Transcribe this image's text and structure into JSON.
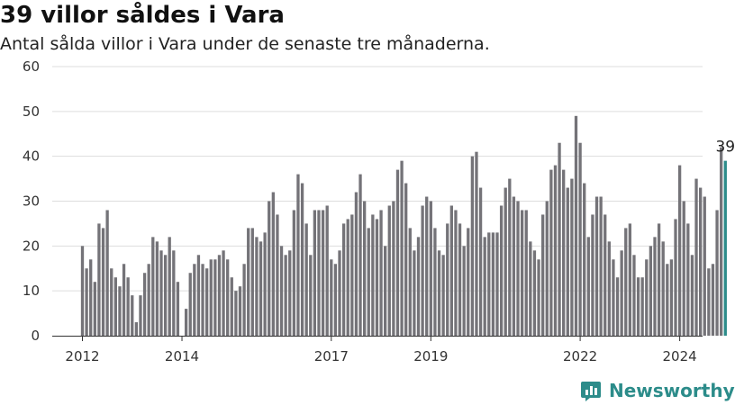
{
  "header": {
    "title": "39 villor såldes i Vara",
    "subtitle": "Antal sålda villor i Vara under de senaste tre månaderna."
  },
  "brand": {
    "name": "Newsworthy",
    "icon": "chart-logo-icon",
    "color": "#2c8c8a"
  },
  "colors": {
    "bar": "#747378",
    "highlight": "#2c8c8a",
    "grid": "#dddddd",
    "axis": "#333333"
  },
  "chart_data": {
    "type": "bar",
    "title": "39 villor såldes i Vara",
    "xlabel": "",
    "ylabel": "",
    "ylim": [
      0,
      60
    ],
    "yticks": [
      0,
      10,
      20,
      30,
      40,
      50,
      60
    ],
    "grid": true,
    "x_start": "2012-01",
    "frequency": "monthly",
    "x_tick_labels": [
      {
        "label": "2012",
        "index": 0
      },
      {
        "label": "2014",
        "index": 24
      },
      {
        "label": "2017",
        "index": 60
      },
      {
        "label": "2019",
        "index": 84
      },
      {
        "label": "2022",
        "index": 120
      },
      {
        "label": "2024",
        "index": 144
      }
    ],
    "highlight_label": "39",
    "values": [
      20,
      15,
      17,
      12,
      25,
      24,
      28,
      15,
      13,
      11,
      16,
      13,
      9,
      3,
      9,
      14,
      16,
      22,
      21,
      19,
      18,
      22,
      19,
      12,
      0,
      6,
      14,
      16,
      18,
      16,
      15,
      17,
      17,
      18,
      19,
      17,
      13,
      10,
      11,
      16,
      24,
      24,
      22,
      21,
      23,
      30,
      32,
      27,
      20,
      18,
      19,
      28,
      36,
      34,
      25,
      18,
      28,
      28,
      28,
      29,
      17,
      16,
      19,
      25,
      26,
      27,
      32,
      36,
      30,
      24,
      27,
      26,
      28,
      20,
      29,
      30,
      37,
      39,
      34,
      24,
      19,
      22,
      29,
      31,
      30,
      24,
      19,
      18,
      25,
      29,
      28,
      25,
      20,
      24,
      40,
      41,
      33,
      22,
      23,
      23,
      23,
      29,
      33,
      35,
      31,
      30,
      28,
      28,
      21,
      19,
      17,
      27,
      30,
      37,
      38,
      43,
      37,
      33,
      35,
      49,
      43,
      34,
      22,
      27,
      31,
      31,
      27,
      21,
      17,
      13,
      19,
      24,
      25,
      18,
      13,
      13,
      17,
      20,
      22,
      25,
      21,
      16,
      17,
      26,
      38,
      30,
      25,
      18,
      35,
      33,
      31,
      15,
      16,
      28,
      42,
      39
    ]
  }
}
